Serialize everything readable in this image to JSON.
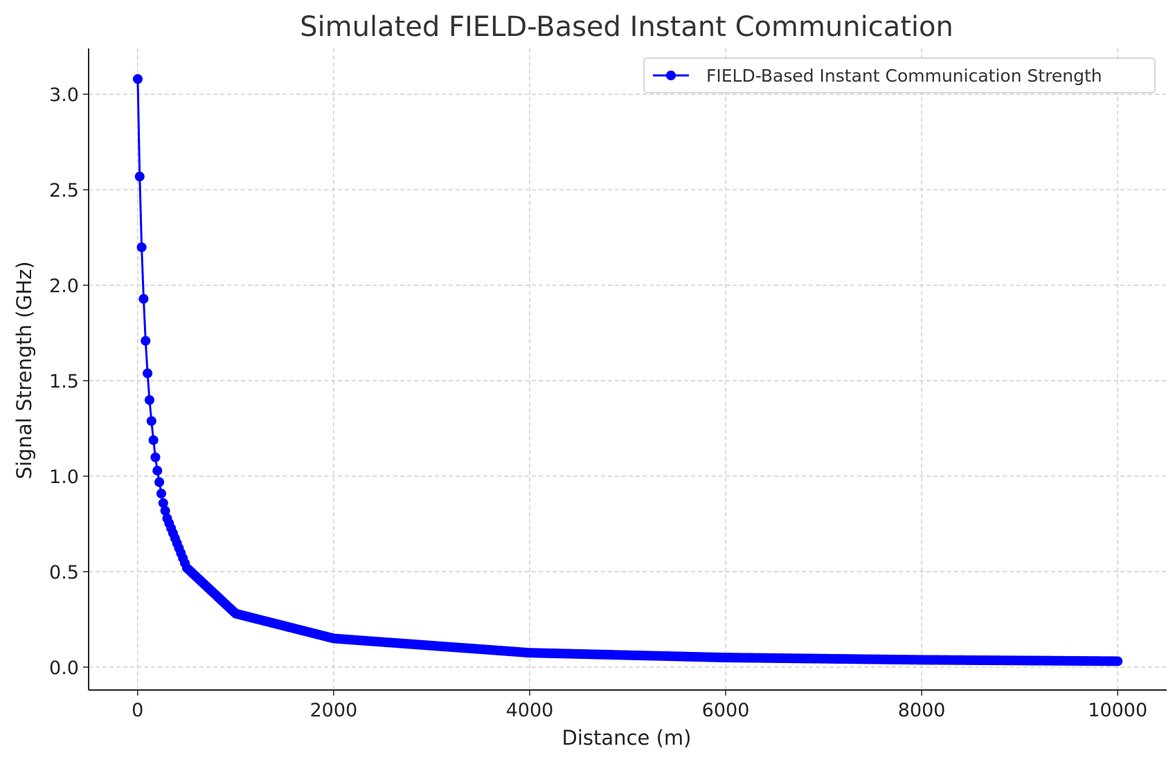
{
  "chart_data": {
    "type": "line",
    "title": "Simulated FIELD-Based Instant Communication",
    "xlabel": "Distance (m)",
    "ylabel": "Signal Strength (GHz)",
    "xlim": [
      -500,
      10500
    ],
    "ylim": [
      -0.12,
      3.24
    ],
    "xticks": [
      0,
      2000,
      4000,
      6000,
      8000,
      10000
    ],
    "xtick_labels": [
      "0",
      "2000",
      "4000",
      "6000",
      "8000",
      "10000"
    ],
    "yticks": [
      0.0,
      0.5,
      1.0,
      1.5,
      2.0,
      2.5,
      3.0
    ],
    "ytick_labels": [
      "0.0",
      "0.5",
      "1.0",
      "1.5",
      "2.0",
      "2.5",
      "3.0"
    ],
    "grid": true,
    "legend_position": "top-right",
    "series": [
      {
        "name": "FIELD-Based Instant Communication Strength",
        "color": "#0000ff",
        "marker": "circle",
        "x_start": 1,
        "x_end": 10000,
        "num_points": 500,
        "x_sample": [
          1,
          21,
          41,
          61,
          81,
          101,
          121,
          141,
          161,
          181,
          201,
          221,
          241,
          261,
          281,
          301,
          501,
          1001,
          2001,
          4001,
          6001,
          8001,
          10000
        ],
        "y_sample": [
          3.08,
          2.57,
          2.2,
          1.93,
          1.71,
          1.54,
          1.4,
          1.29,
          1.19,
          1.1,
          1.03,
          0.97,
          0.91,
          0.86,
          0.82,
          0.78,
          0.52,
          0.28,
          0.15,
          0.075,
          0.05,
          0.038,
          0.031
        ]
      }
    ]
  }
}
